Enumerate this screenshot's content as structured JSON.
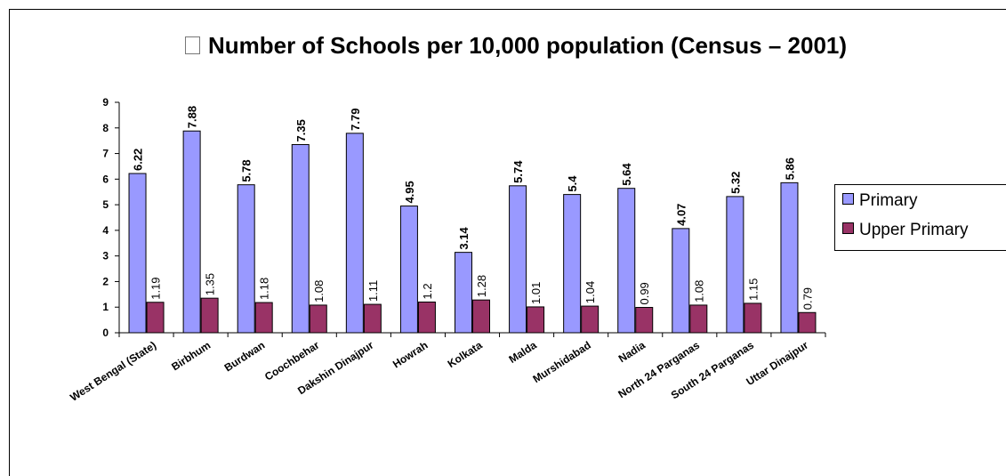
{
  "chart_data": {
    "type": "bar",
    "title": "Number of Schools per 10,000 population (Census – 2001)",
    "xlabel": "",
    "ylabel": "",
    "ylim": [
      0,
      9
    ],
    "yticks": [
      "0",
      "1",
      "2",
      "3",
      "4",
      "5",
      "6",
      "7",
      "8",
      "9"
    ],
    "grid": false,
    "legend_position": "right",
    "categories": [
      "West Bengal (State)",
      "Birbhum",
      "Burdwan",
      "Coochbehar",
      "Dakshin Dinajpur",
      "Howrah",
      "Kolkata",
      "Malda",
      "Murshidabad",
      "Nadia",
      "North 24 Parganas",
      "South 24 Parganas",
      "Uttar Dinajpur"
    ],
    "series": [
      {
        "name": "Primary",
        "color": "#9999ff",
        "values": [
          6.22,
          7.88,
          5.78,
          7.35,
          7.79,
          4.95,
          3.14,
          5.74,
          5.4,
          5.64,
          4.07,
          5.32,
          5.86
        ],
        "labels": [
          "6.22",
          "7.88",
          "5.78",
          "7.35",
          "7.79",
          "4.95",
          "3.14",
          "5.74",
          "5.4",
          "5.64",
          "4.07",
          "5.32",
          "5.86"
        ]
      },
      {
        "name": "Upper Primary",
        "color": "#993366",
        "values": [
          1.19,
          1.35,
          1.18,
          1.08,
          1.11,
          1.2,
          1.28,
          1.01,
          1.04,
          0.99,
          1.08,
          1.15,
          0.79
        ],
        "labels": [
          "1.19",
          "1.35",
          "1.18",
          "1.08",
          "1.11",
          "1.2",
          "1.28",
          "1.01",
          "1.04",
          "0.99",
          "1.08",
          "1.15",
          "0.79"
        ]
      }
    ]
  },
  "legend": {
    "items": [
      {
        "label": "Primary",
        "color": "#9999ff"
      },
      {
        "label": "Upper Primary",
        "color": "#993366"
      }
    ]
  }
}
